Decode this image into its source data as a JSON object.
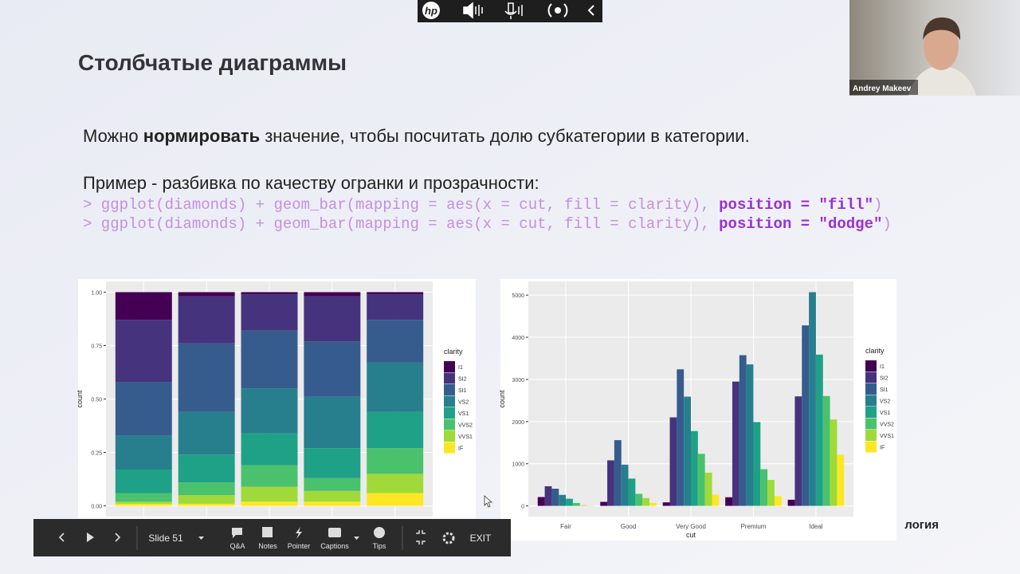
{
  "header": {
    "title": "Столбчатые диаграммы"
  },
  "text": {
    "line1": [
      "Можно ",
      "нормировать",
      " значение, чтобы посчитать долю субкатегории в категории."
    ],
    "line2": "Пример - разбивка по качеству огранки и прозрачности:",
    "code": [
      [
        "> ggplot(diamonds) + geom_bar(mapping = aes(x = cut, fill = clarity), ",
        "position = \"fill\"",
        ")"
      ],
      [
        "> ggplot(diamonds) + geom_bar(mapping = aes(x = cut, fill = clarity), ",
        "position = \"dodge\"",
        ")"
      ]
    ]
  },
  "webcam": {
    "name": "Andrey Makeev"
  },
  "top_toolbar": {
    "logo": "hp"
  },
  "toolbar": {
    "slide": "Slide 51",
    "buttons": [
      "Q&A",
      "Notes",
      "Pointer",
      "Captions",
      "Tips"
    ],
    "exit": "EXIT"
  },
  "footer_fragment": "логия",
  "chart_data": [
    {
      "type": "bar",
      "barmode": "stack",
      "y_label": "count",
      "legend_title": "clarity",
      "categories": [
        null,
        null,
        null,
        null,
        null
      ],
      "ylim": [
        -0.05,
        1.05
      ],
      "yticks": [
        {
          "value": 0,
          "label": "0.00"
        },
        {
          "value": 0.25,
          "label": "0.25"
        },
        {
          "value": 0.5,
          "label": "0.50"
        },
        {
          "value": 0.75,
          "label": "0.75"
        },
        {
          "value": 1,
          "label": "1.00"
        }
      ],
      "grid": true,
      "series": [
        {
          "name": "I1",
          "color": "#440154",
          "values": [
            0.13,
            0.02,
            0.01,
            0.02,
            0.01
          ]
        },
        {
          "name": "SI2",
          "color": "#46337e",
          "values": [
            0.29,
            0.22,
            0.17,
            0.21,
            0.12
          ]
        },
        {
          "name": "SI1",
          "color": "#365c8d",
          "values": [
            0.25,
            0.32,
            0.27,
            0.26,
            0.2
          ]
        },
        {
          "name": "VS2",
          "color": "#277f8e",
          "values": [
            0.16,
            0.2,
            0.21,
            0.24,
            0.23
          ]
        },
        {
          "name": "VS1",
          "color": "#1fa187",
          "values": [
            0.11,
            0.13,
            0.15,
            0.14,
            0.17
          ]
        },
        {
          "name": "VVS2",
          "color": "#4ac16d",
          "values": [
            0.04,
            0.06,
            0.1,
            0.06,
            0.12
          ]
        },
        {
          "name": "VVS1",
          "color": "#9fda3a",
          "values": [
            0.01,
            0.04,
            0.07,
            0.05,
            0.09
          ]
        },
        {
          "name": "IF",
          "color": "#fde725",
          "values": [
            0.01,
            0.01,
            0.02,
            0.02,
            0.06
          ]
        }
      ]
    },
    {
      "type": "bar",
      "barmode": "group",
      "y_label": "count",
      "x_label": "cut",
      "legend_title": "clarity",
      "categories": [
        "Fair",
        "Good",
        "Very Good",
        "Premium",
        "Ideal"
      ],
      "ylim": [
        -254,
        5325
      ],
      "yticks": [
        0,
        1000,
        2000,
        3000,
        4000,
        5000
      ],
      "grid": true,
      "series": [
        {
          "name": "I1",
          "color": "#440154",
          "values": [
            210,
            96,
            84,
            205,
            146
          ]
        },
        {
          "name": "SI2",
          "color": "#46337e",
          "values": [
            466,
            1081,
            2100,
            2949,
            2598
          ]
        },
        {
          "name": "SI1",
          "color": "#365c8d",
          "values": [
            408,
            1560,
            3240,
            3575,
            4282
          ]
        },
        {
          "name": "VS2",
          "color": "#277f8e",
          "values": [
            261,
            978,
            2591,
            3357,
            5071
          ]
        },
        {
          "name": "VS1",
          "color": "#1fa187",
          "values": [
            170,
            648,
            1775,
            1989,
            3589
          ]
        },
        {
          "name": "VVS2",
          "color": "#4ac16d",
          "values": [
            69,
            286,
            1235,
            870,
            2606
          ]
        },
        {
          "name": "VVS1",
          "color": "#9fda3a",
          "values": [
            17,
            186,
            789,
            616,
            2047
          ]
        },
        {
          "name": "IF",
          "color": "#fde725",
          "values": [
            9,
            71,
            268,
            230,
            1212
          ]
        }
      ]
    }
  ]
}
